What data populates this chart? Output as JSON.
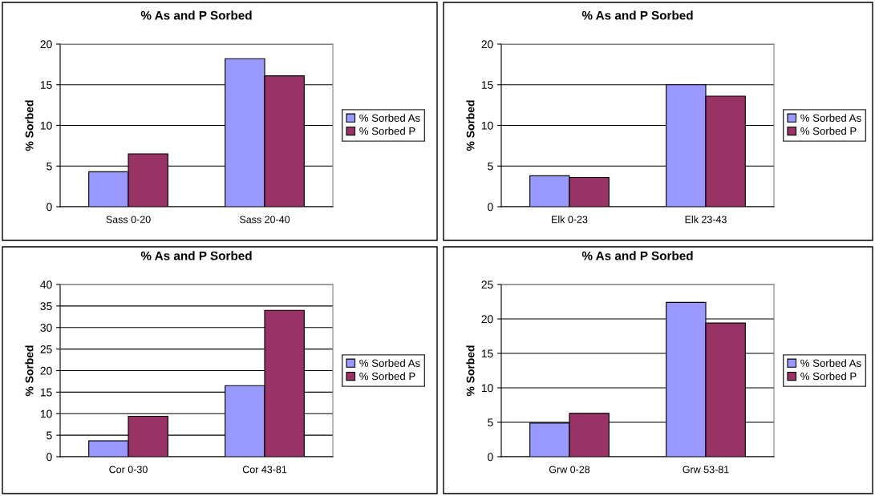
{
  "chart_data": [
    {
      "type": "bar",
      "title": "% As and P Sorbed",
      "ylabel": "% Sorbed",
      "categories": [
        "Sass 0-20",
        "Sass 20-40"
      ],
      "series": [
        {
          "name": "% Sorbed As",
          "color": "#9999ff",
          "values": [
            4.3,
            18.2
          ]
        },
        {
          "name": "% Sorbed P",
          "color": "#993366",
          "values": [
            6.5,
            16.1
          ]
        }
      ],
      "ylim": [
        0,
        20
      ],
      "yticks": [
        0,
        5,
        10,
        15,
        20
      ],
      "grid": "y",
      "legend": "right"
    },
    {
      "type": "bar",
      "title": "% As and P Sorbed",
      "ylabel": "% Sorbed",
      "categories": [
        "Elk 0-23",
        "Elk 23-43"
      ],
      "series": [
        {
          "name": "% Sorbed As",
          "color": "#9999ff",
          "values": [
            3.8,
            15.0
          ]
        },
        {
          "name": "% Sorbed P",
          "color": "#993366",
          "values": [
            3.6,
            13.6
          ]
        }
      ],
      "ylim": [
        0,
        20
      ],
      "yticks": [
        0,
        5,
        10,
        15,
        20
      ],
      "grid": "y",
      "legend": "right"
    },
    {
      "type": "bar",
      "title": "% As and P Sorbed",
      "ylabel": "% Sorbed",
      "categories": [
        "Cor 0-30",
        "Cor 43-81"
      ],
      "series": [
        {
          "name": "% Sorbed As",
          "color": "#9999ff",
          "values": [
            3.7,
            16.5
          ]
        },
        {
          "name": "% Sorbed P",
          "color": "#993366",
          "values": [
            9.4,
            34.0
          ]
        }
      ],
      "ylim": [
        0,
        40
      ],
      "yticks": [
        0,
        5,
        10,
        15,
        20,
        25,
        30,
        35,
        40
      ],
      "grid": "y",
      "legend": "right"
    },
    {
      "type": "bar",
      "title": "% As and P Sorbed",
      "ylabel": "% Sorbed",
      "categories": [
        "Grw 0-28",
        "Grw 53-81"
      ],
      "series": [
        {
          "name": "% Sorbed As",
          "color": "#9999ff",
          "values": [
            4.9,
            22.4
          ]
        },
        {
          "name": "% Sorbed P",
          "color": "#993366",
          "values": [
            6.3,
            19.4
          ]
        }
      ],
      "ylim": [
        0,
        25
      ],
      "yticks": [
        0,
        5,
        10,
        15,
        20,
        25
      ],
      "grid": "y",
      "legend": "right"
    }
  ]
}
